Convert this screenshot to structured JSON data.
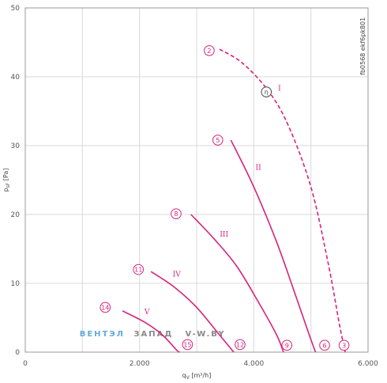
{
  "chart_data": {
    "type": "line",
    "xlabel": "q",
    "xlabel_sub": "V",
    "xlabel_unit": " [m³/h]",
    "ylabel": "p",
    "ylabel_sub": "sF",
    "ylabel_unit": " [Pa]",
    "xlim": [
      0,
      6000
    ],
    "ylim": [
      0,
      50
    ],
    "x_ticks": [
      0,
      2000,
      4000,
      6000
    ],
    "x_tick_labels": [
      "0",
      "2.000",
      "4.000",
      "6.000"
    ],
    "y_ticks": [
      0,
      10,
      20,
      30,
      40,
      50
    ],
    "y_tick_labels": [
      "0",
      "10",
      "20",
      "30",
      "40",
      "50"
    ],
    "grid": true,
    "code_label": "fb0568 ekf6pk801",
    "watermark": {
      "part1": "ВЕНТЭЛ",
      "part2": "ЗАПАД",
      "part3": "V-W.BY"
    },
    "series": [
      {
        "name": "I",
        "dashed": true,
        "points": [
          [
            3400,
            44
          ],
          [
            3800,
            42
          ],
          [
            4250,
            38
          ],
          [
            4600,
            33
          ],
          [
            5000,
            24
          ],
          [
            5300,
            13
          ],
          [
            5500,
            4
          ],
          [
            5600,
            0
          ]
        ],
        "label_at": [
          4450,
          38
        ]
      },
      {
        "name": "II",
        "dashed": false,
        "points": [
          [
            3600,
            30.8
          ],
          [
            4000,
            24
          ],
          [
            4400,
            16
          ],
          [
            4700,
            9
          ],
          [
            4950,
            3
          ],
          [
            5080,
            0
          ]
        ],
        "label_at": [
          4080,
          26.5
        ]
      },
      {
        "name": "III",
        "dashed": false,
        "points": [
          [
            2900,
            20
          ],
          [
            3300,
            16.5
          ],
          [
            3700,
            12.5
          ],
          [
            4100,
            7
          ],
          [
            4400,
            2.5
          ],
          [
            4520,
            0
          ]
        ],
        "label_at": [
          3480,
          16.8
        ]
      },
      {
        "name": "IV",
        "dashed": false,
        "points": [
          [
            2200,
            11.7
          ],
          [
            2600,
            9.5
          ],
          [
            3000,
            6.5
          ],
          [
            3400,
            2.5
          ],
          [
            3650,
            0
          ]
        ],
        "label_at": [
          2650,
          11
        ]
      },
      {
        "name": "V",
        "dashed": false,
        "points": [
          [
            1700,
            6
          ],
          [
            2100,
            4.3
          ],
          [
            2400,
            2.5
          ],
          [
            2650,
            0.3
          ],
          [
            2700,
            0
          ]
        ],
        "label_at": [
          2130,
          5.5
        ]
      }
    ],
    "markers": [
      {
        "label": "2",
        "x": 3220,
        "y": 43.8,
        "style": "pink"
      },
      {
        "label": "η",
        "x": 4220,
        "y": 37.8,
        "style": "dark"
      },
      {
        "label": "5",
        "x": 3370,
        "y": 30.8,
        "style": "pink"
      },
      {
        "label": "8",
        "x": 2640,
        "y": 20.1,
        "style": "pink"
      },
      {
        "label": "11",
        "x": 1980,
        "y": 12.0,
        "style": "pink"
      },
      {
        "label": "14",
        "x": 1400,
        "y": 6.5,
        "style": "pink"
      },
      {
        "label": "15",
        "x": 2840,
        "y": 1.1,
        "style": "pink"
      },
      {
        "label": "12",
        "x": 3760,
        "y": 1.1,
        "style": "pink"
      },
      {
        "label": "9",
        "x": 4580,
        "y": 1.0,
        "style": "pink"
      },
      {
        "label": "6",
        "x": 5240,
        "y": 1.0,
        "style": "pink"
      },
      {
        "label": "3",
        "x": 5580,
        "y": 1.0,
        "style": "pink"
      }
    ],
    "colors": {
      "curve": "#d6237d",
      "grid": "#d9d9d9",
      "axis": "#999999",
      "wm_blue": "#66aadd",
      "wm_gray": "#888888"
    }
  }
}
